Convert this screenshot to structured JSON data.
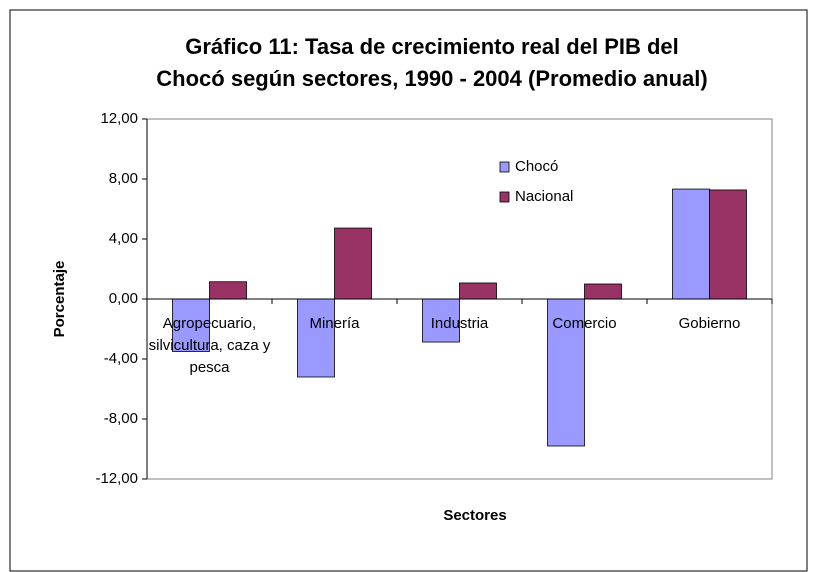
{
  "chart_data": {
    "type": "bar",
    "title": [
      "Gráfico 11: Tasa de crecimiento real del PIB del",
      "Chocó según sectores, 1990 - 2004 (Promedio anual)"
    ],
    "y_label": "Porcentaje",
    "x_label": "Sectores",
    "categories": [
      "Agropecuario, silvicultura, caza y pesca",
      "Minería",
      "Industria",
      "Comercio",
      "Gobierno"
    ],
    "series": [
      {
        "name": "Chocó",
        "color": "#9999ff",
        "values": [
          -3.5,
          -5.2,
          -2.87,
          -9.8,
          7.33
        ]
      },
      {
        "name": "Nacional",
        "color": "#993366",
        "values": [
          1.15,
          4.73,
          1.07,
          1.0,
          7.27
        ]
      }
    ],
    "ylim": [
      -12,
      12
    ],
    "yticks": [
      {
        "value": -12,
        "label": "-12,00"
      },
      {
        "value": -8,
        "label": "-8,00"
      },
      {
        "value": -4,
        "label": "-4,00"
      },
      {
        "value": 0,
        "label": "0,00"
      },
      {
        "value": 4,
        "label": "4,00"
      },
      {
        "value": 8,
        "label": "8,00"
      },
      {
        "value": 12,
        "label": "12,00"
      }
    ]
  }
}
